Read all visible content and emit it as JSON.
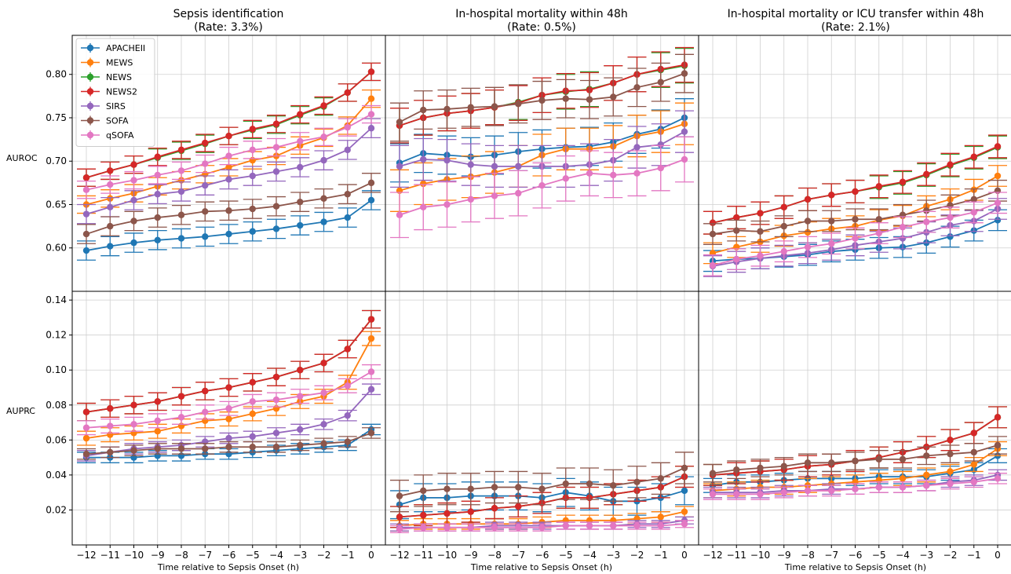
{
  "figure": {
    "columns": [
      {
        "title_line1": "Sepsis identification",
        "title_line2": "(Rate: 3.3%)"
      },
      {
        "title_line1": "In-hospital mortality within 48h",
        "title_line2": "(Rate: 0.5%)"
      },
      {
        "title_line1": "In-hospital mortality or ICU transfer within 48h",
        "title_line2": "(Rate: 2.1%)"
      }
    ],
    "row_labels": [
      "AUROC",
      "AUPRC"
    ],
    "xlabel": "Time relative to Sepsis Onset (h)",
    "x_tick_labels": [
      "−12",
      "−11",
      "−10",
      "−9",
      "−8",
      "−7",
      "−6",
      "−5",
      "−4",
      "−3",
      "−2",
      "−1",
      "0"
    ]
  },
  "chart_data": {
    "type": "line",
    "x": [
      -12,
      -11,
      -10,
      -9,
      -8,
      -7,
      -6,
      -5,
      -4,
      -3,
      -2,
      -1,
      0
    ],
    "grid": true,
    "legend_placement": "upper-left of top-left panel",
    "series_meta": [
      {
        "name": "APACHEII",
        "color": "#1f77b4"
      },
      {
        "name": "MEWS",
        "color": "#ff7f0e"
      },
      {
        "name": "NEWS",
        "color": "#2ca02c"
      },
      {
        "name": "NEWS2",
        "color": "#d62728"
      },
      {
        "name": "SIRS",
        "color": "#9467bd"
      },
      {
        "name": "SOFA",
        "color": "#8c564b"
      },
      {
        "name": "qSOFA",
        "color": "#e377c2"
      }
    ],
    "panels": [
      {
        "row": 0,
        "col": 0,
        "ylim": [
          0.55,
          0.845
        ],
        "y_ticks": [
          0.6,
          0.65,
          0.7,
          0.75,
          0.8
        ],
        "y_tick_labels": [
          "0.60",
          "0.65",
          "0.70",
          "0.75",
          "0.80"
        ],
        "series": [
          {
            "name": "APACHEII",
            "values": [
              0.597,
              0.602,
              0.606,
              0.609,
              0.611,
              0.613,
              0.616,
              0.619,
              0.622,
              0.626,
              0.63,
              0.635,
              0.655
            ],
            "err": 0.011
          },
          {
            "name": "MEWS",
            "values": [
              0.65,
              0.657,
              0.663,
              0.671,
              0.678,
              0.685,
              0.693,
              0.701,
              0.706,
              0.718,
              0.727,
              0.741,
              0.772
            ],
            "err": 0.01
          },
          {
            "name": "NEWS",
            "values": [
              0.681,
              0.689,
              0.696,
              0.704,
              0.712,
              0.72,
              0.729,
              0.736,
              0.742,
              0.753,
              0.763,
              0.779,
              0.803
            ],
            "err": 0.01
          },
          {
            "name": "NEWS2",
            "values": [
              0.681,
              0.689,
              0.696,
              0.705,
              0.713,
              0.721,
              0.729,
              0.737,
              0.743,
              0.754,
              0.764,
              0.779,
              0.803
            ],
            "err": 0.01
          },
          {
            "name": "SIRS",
            "values": [
              0.639,
              0.647,
              0.655,
              0.662,
              0.665,
              0.672,
              0.679,
              0.683,
              0.688,
              0.693,
              0.701,
              0.713,
              0.738
            ],
            "err": 0.011
          },
          {
            "name": "SOFA",
            "values": [
              0.616,
              0.625,
              0.631,
              0.635,
              0.638,
              0.642,
              0.643,
              0.645,
              0.648,
              0.653,
              0.657,
              0.662,
              0.675
            ],
            "err": 0.011
          },
          {
            "name": "qSOFA",
            "values": [
              0.667,
              0.673,
              0.678,
              0.684,
              0.689,
              0.697,
              0.706,
              0.713,
              0.716,
              0.723,
              0.728,
              0.739,
              0.754
            ],
            "err": 0.01
          }
        ]
      },
      {
        "row": 0,
        "col": 1,
        "ylim": [
          0.55,
          0.845
        ],
        "series": [
          {
            "name": "APACHEII",
            "values": [
              0.698,
              0.709,
              0.707,
              0.705,
              0.707,
              0.711,
              0.714,
              0.716,
              0.717,
              0.722,
              0.731,
              0.737,
              0.75
            ],
            "err": 0.022
          },
          {
            "name": "MEWS",
            "values": [
              0.666,
              0.674,
              0.679,
              0.682,
              0.687,
              0.694,
              0.707,
              0.714,
              0.714,
              0.717,
              0.729,
              0.734,
              0.743
            ],
            "err": 0.024
          },
          {
            "name": "NEWS",
            "values": [
              0.741,
              0.75,
              0.755,
              0.758,
              0.762,
              0.768,
              0.776,
              0.78,
              0.783,
              0.79,
              0.8,
              0.805,
              0.81
            ],
            "err": 0.02
          },
          {
            "name": "NEWS2",
            "values": [
              0.741,
              0.75,
              0.755,
              0.758,
              0.762,
              0.767,
              0.776,
              0.781,
              0.782,
              0.79,
              0.8,
              0.806,
              0.811
            ],
            "err": 0.02
          },
          {
            "name": "SIRS",
            "values": [
              0.694,
              0.702,
              0.701,
              0.696,
              0.694,
              0.694,
              0.694,
              0.694,
              0.696,
              0.701,
              0.716,
              0.719,
              0.734
            ],
            "err": 0.024
          },
          {
            "name": "SOFA",
            "values": [
              0.745,
              0.759,
              0.76,
              0.762,
              0.763,
              0.766,
              0.77,
              0.772,
              0.771,
              0.774,
              0.785,
              0.791,
              0.801
            ],
            "err": 0.022
          },
          {
            "name": "qSOFA",
            "values": [
              0.638,
              0.647,
              0.65,
              0.656,
              0.66,
              0.663,
              0.672,
              0.68,
              0.686,
              0.684,
              0.686,
              0.692,
              0.702
            ],
            "err": 0.026
          }
        ]
      },
      {
        "row": 0,
        "col": 2,
        "ylim": [
          0.55,
          0.845
        ],
        "series": [
          {
            "name": "APACHEII",
            "values": [
              0.585,
              0.587,
              0.588,
              0.59,
              0.592,
              0.596,
              0.598,
              0.6,
              0.601,
              0.606,
              0.613,
              0.62,
              0.632
            ],
            "err": 0.012
          },
          {
            "name": "MEWS",
            "values": [
              0.594,
              0.601,
              0.607,
              0.614,
              0.618,
              0.622,
              0.625,
              0.632,
              0.637,
              0.648,
              0.656,
              0.667,
              0.683
            ],
            "err": 0.012
          },
          {
            "name": "NEWS",
            "values": [
              0.629,
              0.635,
              0.64,
              0.647,
              0.656,
              0.661,
              0.665,
              0.67,
              0.675,
              0.684,
              0.695,
              0.704,
              0.716
            ],
            "err": 0.013
          },
          {
            "name": "NEWS2",
            "values": [
              0.629,
              0.635,
              0.64,
              0.647,
              0.656,
              0.661,
              0.665,
              0.671,
              0.676,
              0.685,
              0.696,
              0.705,
              0.717
            ],
            "err": 0.013
          },
          {
            "name": "SIRS",
            "values": [
              0.579,
              0.584,
              0.588,
              0.591,
              0.594,
              0.598,
              0.603,
              0.607,
              0.611,
              0.618,
              0.626,
              0.631,
              0.645
            ],
            "err": 0.012
          },
          {
            "name": "SOFA",
            "values": [
              0.616,
              0.62,
              0.619,
              0.625,
              0.631,
              0.631,
              0.633,
              0.633,
              0.638,
              0.643,
              0.649,
              0.656,
              0.666
            ],
            "err": 0.012
          },
          {
            "name": "qSOFA",
            "values": [
              0.58,
              0.587,
              0.591,
              0.596,
              0.601,
              0.605,
              0.611,
              0.617,
              0.624,
              0.63,
              0.635,
              0.641,
              0.652
            ],
            "err": 0.012
          }
        ]
      },
      {
        "row": 1,
        "col": 0,
        "ylim": [
          0.0,
          0.145
        ],
        "y_ticks": [
          0.02,
          0.04,
          0.06,
          0.08,
          0.1,
          0.12,
          0.14
        ],
        "y_tick_labels": [
          "0.02",
          "0.04",
          "0.06",
          "0.08",
          "0.10",
          "0.12",
          "0.14"
        ],
        "series": [
          {
            "name": "APACHEII",
            "values": [
              0.05,
              0.05,
              0.05,
              0.051,
              0.051,
              0.052,
              0.052,
              0.053,
              0.054,
              0.055,
              0.056,
              0.057,
              0.066
            ],
            "err": 0.003
          },
          {
            "name": "MEWS",
            "values": [
              0.061,
              0.063,
              0.064,
              0.065,
              0.068,
              0.071,
              0.072,
              0.075,
              0.078,
              0.082,
              0.085,
              0.093,
              0.118
            ],
            "err": 0.004
          },
          {
            "name": "NEWS",
            "values": [
              0.076,
              0.078,
              0.08,
              0.082,
              0.085,
              0.088,
              0.09,
              0.093,
              0.096,
              0.1,
              0.104,
              0.112,
              0.129
            ],
            "err": 0.005
          },
          {
            "name": "NEWS2",
            "values": [
              0.076,
              0.078,
              0.08,
              0.082,
              0.085,
              0.088,
              0.09,
              0.093,
              0.096,
              0.1,
              0.104,
              0.112,
              0.129
            ],
            "err": 0.005
          },
          {
            "name": "SIRS",
            "values": [
              0.051,
              0.053,
              0.055,
              0.056,
              0.057,
              0.059,
              0.061,
              0.062,
              0.064,
              0.066,
              0.069,
              0.074,
              0.089
            ],
            "err": 0.003
          },
          {
            "name": "SOFA",
            "values": [
              0.052,
              0.053,
              0.054,
              0.055,
              0.055,
              0.055,
              0.056,
              0.056,
              0.056,
              0.057,
              0.058,
              0.059,
              0.064
            ],
            "err": 0.003
          },
          {
            "name": "qSOFA",
            "values": [
              0.067,
              0.068,
              0.069,
              0.071,
              0.073,
              0.076,
              0.078,
              0.082,
              0.083,
              0.085,
              0.087,
              0.091,
              0.099
            ],
            "err": 0.004
          }
        ]
      },
      {
        "row": 1,
        "col": 1,
        "ylim": [
          0.0,
          0.145
        ],
        "series": [
          {
            "name": "APACHEII",
            "values": [
              0.023,
              0.027,
              0.027,
              0.028,
              0.028,
              0.028,
              0.027,
              0.03,
              0.028,
              0.025,
              0.025,
              0.027,
              0.031
            ],
            "err": 0.008
          },
          {
            "name": "MEWS",
            "values": [
              0.011,
              0.012,
              0.012,
              0.012,
              0.012,
              0.012,
              0.013,
              0.014,
              0.014,
              0.014,
              0.015,
              0.016,
              0.019
            ],
            "err": 0.003
          },
          {
            "name": "NEWS",
            "values": [
              0.016,
              0.017,
              0.018,
              0.019,
              0.021,
              0.022,
              0.024,
              0.027,
              0.027,
              0.029,
              0.031,
              0.033,
              0.039
            ],
            "err": 0.006
          },
          {
            "name": "NEWS2",
            "values": [
              0.016,
              0.017,
              0.018,
              0.019,
              0.021,
              0.022,
              0.024,
              0.027,
              0.027,
              0.029,
              0.031,
              0.033,
              0.039
            ],
            "err": 0.006
          },
          {
            "name": "SIRS",
            "values": [
              0.01,
              0.01,
              0.01,
              0.01,
              0.011,
              0.011,
              0.011,
              0.011,
              0.011,
              0.011,
              0.012,
              0.012,
              0.014
            ],
            "err": 0.002
          },
          {
            "name": "SOFA",
            "values": [
              0.028,
              0.031,
              0.032,
              0.032,
              0.033,
              0.033,
              0.032,
              0.035,
              0.035,
              0.034,
              0.036,
              0.038,
              0.044
            ],
            "err": 0.009
          },
          {
            "name": "qSOFA",
            "values": [
              0.009,
              0.01,
              0.01,
              0.01,
              0.01,
              0.01,
              0.01,
              0.011,
              0.011,
              0.011,
              0.011,
              0.011,
              0.012
            ],
            "err": 0.002
          }
        ]
      },
      {
        "row": 1,
        "col": 2,
        "ylim": [
          0.0,
          0.145
        ],
        "series": [
          {
            "name": "APACHEII",
            "values": [
              0.034,
              0.036,
              0.036,
              0.037,
              0.038,
              0.038,
              0.038,
              0.039,
              0.039,
              0.039,
              0.041,
              0.043,
              0.051
            ],
            "err": 0.004
          },
          {
            "name": "MEWS",
            "values": [
              0.031,
              0.032,
              0.033,
              0.033,
              0.034,
              0.035,
              0.036,
              0.037,
              0.038,
              0.04,
              0.042,
              0.046,
              0.055
            ],
            "err": 0.004
          },
          {
            "name": "NEWS",
            "values": [
              0.04,
              0.041,
              0.042,
              0.043,
              0.045,
              0.046,
              0.048,
              0.05,
              0.053,
              0.056,
              0.06,
              0.064,
              0.073
            ],
            "err": 0.006
          },
          {
            "name": "NEWS2",
            "values": [
              0.04,
              0.041,
              0.042,
              0.043,
              0.045,
              0.046,
              0.048,
              0.05,
              0.053,
              0.056,
              0.06,
              0.064,
              0.073
            ],
            "err": 0.006
          },
          {
            "name": "SIRS",
            "values": [
              0.03,
              0.03,
              0.03,
              0.031,
              0.031,
              0.032,
              0.032,
              0.033,
              0.033,
              0.034,
              0.036,
              0.037,
              0.04
            ],
            "err": 0.003
          },
          {
            "name": "SOFA",
            "values": [
              0.041,
              0.043,
              0.044,
              0.045,
              0.047,
              0.047,
              0.048,
              0.049,
              0.049,
              0.051,
              0.052,
              0.053,
              0.057
            ],
            "err": 0.005
          },
          {
            "name": "qSOFA",
            "values": [
              0.029,
              0.029,
              0.029,
              0.03,
              0.031,
              0.031,
              0.032,
              0.033,
              0.033,
              0.034,
              0.035,
              0.036,
              0.038
            ],
            "err": 0.003
          }
        ]
      }
    ]
  }
}
